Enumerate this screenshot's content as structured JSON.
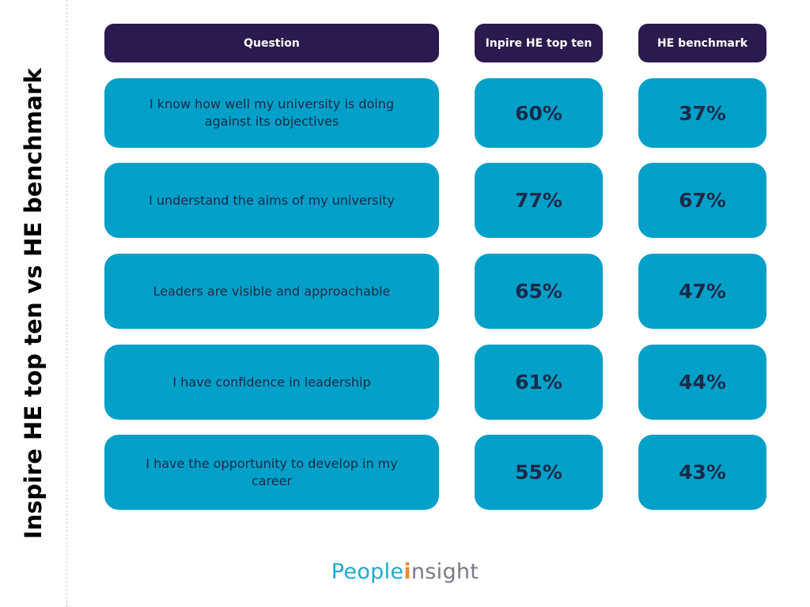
{
  "side_title": "Inspire HE top ten vs HE benchmark",
  "headers": {
    "question": "Question",
    "col1": "Inpire HE top ten",
    "col2": "HE benchmark"
  },
  "rows": [
    {
      "question": "I know how well my university is doing against its objectives",
      "top_ten": "60%",
      "benchmark": "37%"
    },
    {
      "question": "I understand the aims of my university",
      "top_ten": "77%",
      "benchmark": "67%"
    },
    {
      "question": "Leaders are visible and approachable",
      "top_ten": "65%",
      "benchmark": "47%"
    },
    {
      "question": "I have confidence in leadership",
      "top_ten": "61%",
      "benchmark": "44%"
    },
    {
      "question": "I have the opportunity to develop in my career",
      "top_ten": "55%",
      "benchmark": "43%"
    }
  ],
  "logo": {
    "part1": "People",
    "part2": "i",
    "part3": "nsight"
  },
  "colors": {
    "header_bg": "#2b1a4d",
    "cell_bg": "#00a0c8",
    "cell_text": "#1b2a4a",
    "logo_primary": "#20a8d0",
    "logo_accent": "#f28a2e",
    "logo_secondary": "#7a7a8a"
  }
}
